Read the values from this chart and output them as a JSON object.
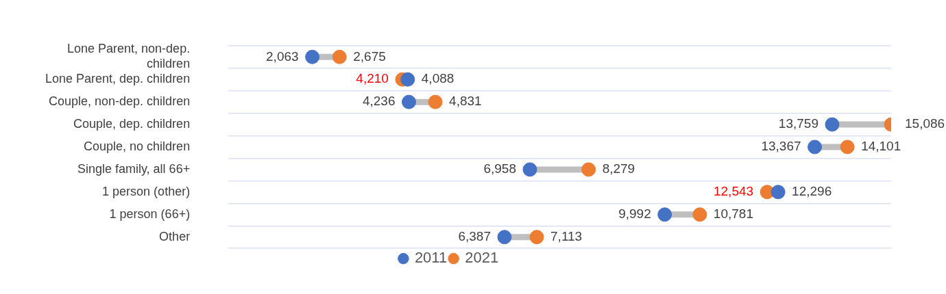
{
  "chart_data": {
    "type": "scatter",
    "orientation": "horizontal",
    "marker": "circle",
    "grid": "y",
    "legend": "bottom",
    "categories": [
      "Lone Parent, non-dep. children",
      "Lone Parent, dep. children",
      "Couple, non-dep. children",
      "Couple, dep. children",
      "Couple, no children",
      "Single family, all 66+",
      "1 person (other)",
      "1 person (66+)",
      "Other"
    ],
    "series": [
      {
        "name": "2011",
        "color": "#4472c4",
        "values": [
          2063,
          4210,
          4236,
          13759,
          13367,
          6958,
          12543,
          9992,
          6387
        ],
        "value_labels": [
          "2,063",
          "4,210",
          "4,236",
          "13,759",
          "13,367",
          "6,958",
          "12,543",
          "9,992",
          "6,387"
        ]
      },
      {
        "name": "2021",
        "color": "#ed7d31",
        "values": [
          2675,
          4088,
          4831,
          15086,
          14101,
          8279,
          12296,
          10781,
          7113
        ],
        "value_labels": [
          "2,675",
          "4,088",
          "4,831",
          "15,086",
          "14,101",
          "8,279",
          "12,296",
          "10,781",
          "7,113"
        ]
      }
    ]
  }
}
